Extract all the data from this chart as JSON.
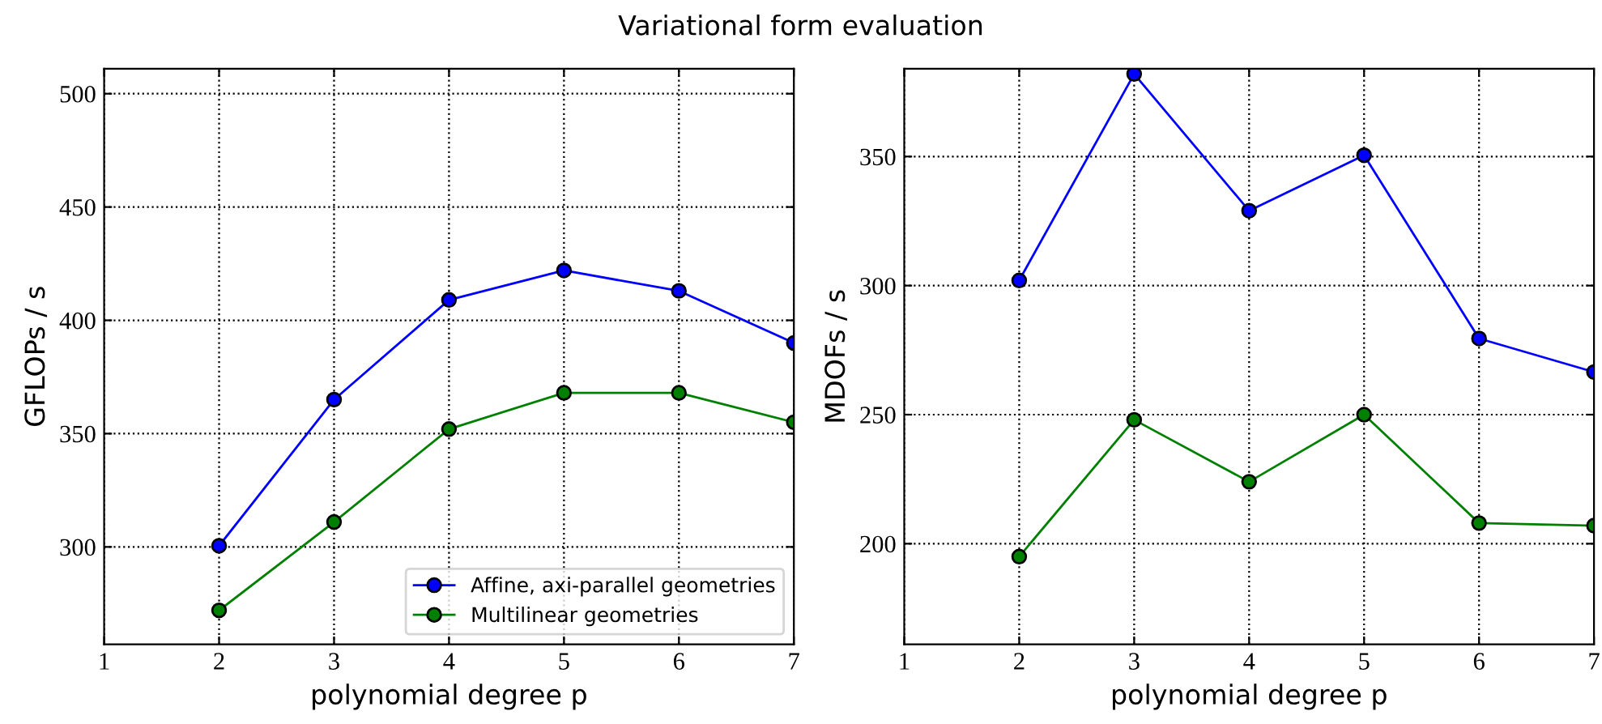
{
  "chart_data": [
    {
      "type": "line",
      "title": "Variational form evaluation",
      "xlabel": "polynomial degree p",
      "ylabel": "GFLOPs / s",
      "x": [
        2,
        3,
        4,
        5,
        6,
        7
      ],
      "xlim": [
        1,
        7
      ],
      "xticks": [
        1,
        2,
        3,
        4,
        5,
        6,
        7
      ],
      "ylim": [
        257,
        511
      ],
      "yticks": [
        300,
        350,
        400,
        450,
        500
      ],
      "grid": true,
      "legend": "bottom right",
      "marker": "circle",
      "line_style": "solid",
      "series": [
        {
          "name": "Affine, axi-parallel geometries",
          "color": "#0000ff",
          "values": [
            300.5,
            365,
            409,
            422,
            413,
            390
          ]
        },
        {
          "name": "Multilinear geometries",
          "color": "#008000",
          "values": [
            272,
            311,
            352,
            368,
            368,
            355
          ]
        }
      ]
    },
    {
      "type": "line",
      "xlabel": "polynomial degree p",
      "ylabel": "MDOFs / s",
      "x": [
        2,
        3,
        4,
        5,
        6,
        7
      ],
      "xlim": [
        1,
        7
      ],
      "xticks": [
        1,
        2,
        3,
        4,
        5,
        6,
        7
      ],
      "ylim": [
        161,
        384
      ],
      "yticks": [
        200,
        250,
        300,
        350
      ],
      "grid": true,
      "marker": "circle",
      "line_style": "solid",
      "series": [
        {
          "color": "#0000ff",
          "values": [
            302,
            382,
            329,
            350.5,
            279.5,
            266.5
          ]
        },
        {
          "color": "#008000",
          "values": [
            195,
            248,
            224,
            250,
            208,
            207
          ]
        }
      ]
    }
  ]
}
